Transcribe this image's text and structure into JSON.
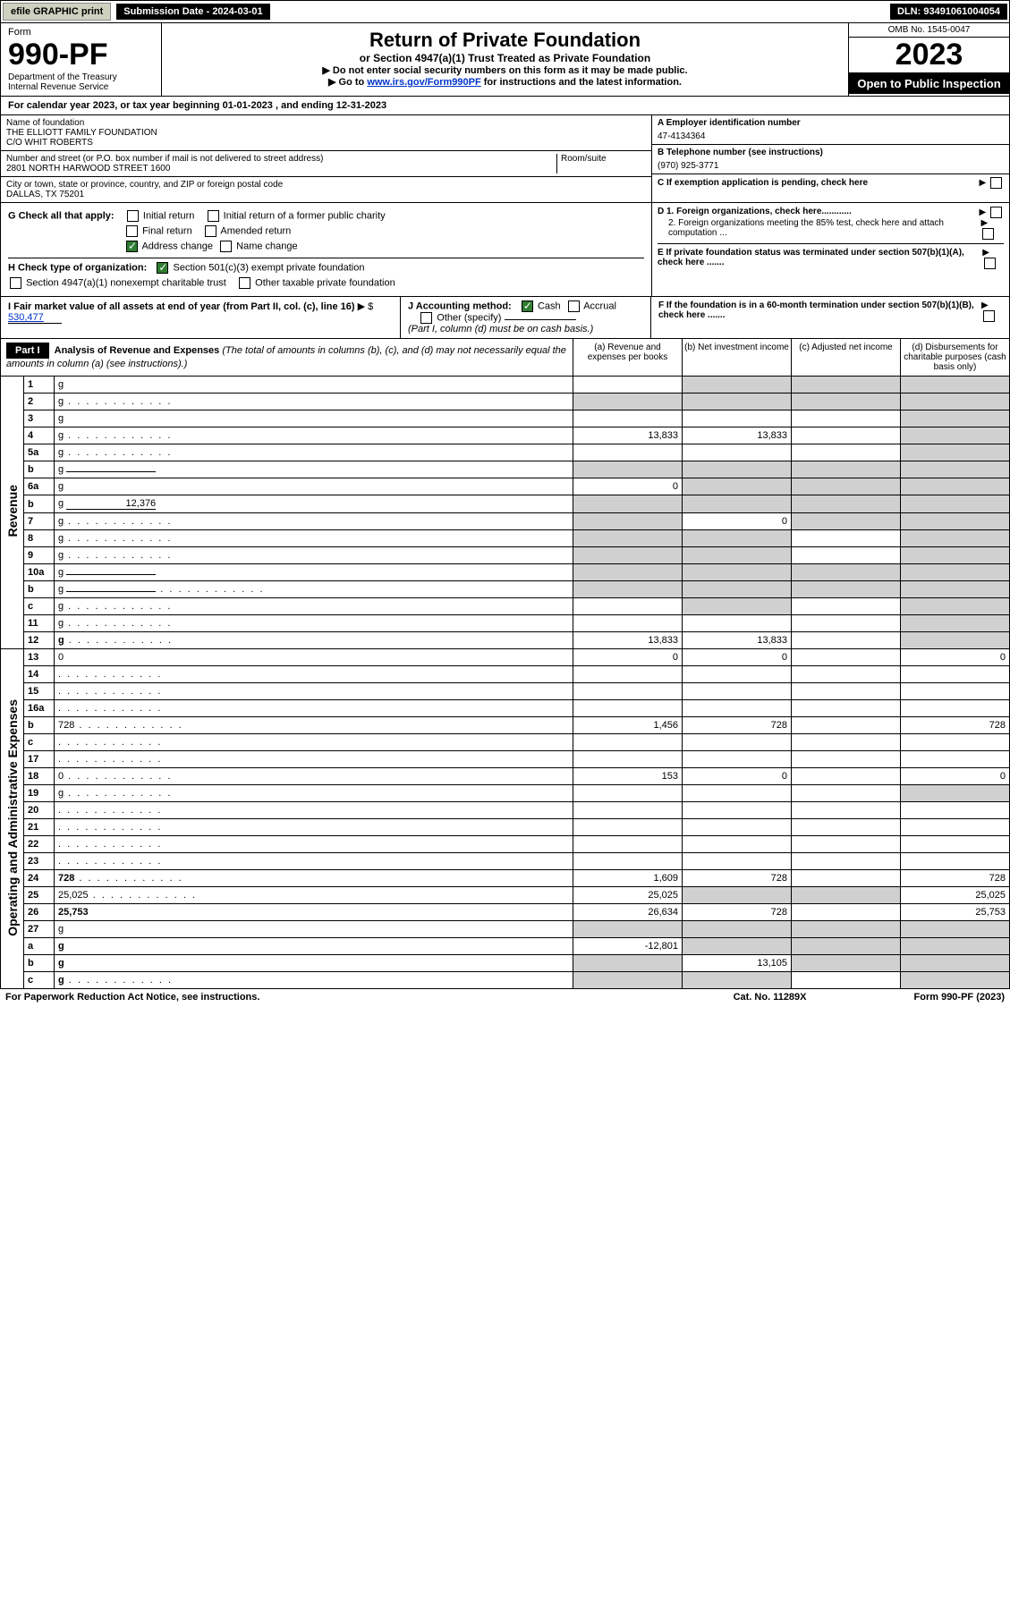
{
  "top": {
    "efile": "efile GRAPHIC print",
    "submission": "Submission Date - 2024-03-01",
    "dln": "DLN: 93491061004054"
  },
  "header": {
    "form_label": "Form",
    "form_num": "990-PF",
    "dept": "Department of the Treasury\nInternal Revenue Service",
    "title": "Return of Private Foundation",
    "subtitle": "or Section 4947(a)(1) Trust Treated as Private Foundation",
    "instr1": "▶ Do not enter social security numbers on this form as it may be made public.",
    "instr2_prefix": "▶ Go to ",
    "instr2_link": "www.irs.gov/Form990PF",
    "instr2_suffix": " for instructions and the latest information.",
    "omb": "OMB No. 1545-0047",
    "year": "2023",
    "open": "Open to Public Inspection"
  },
  "cal": "For calendar year 2023, or tax year beginning 01-01-2023           , and ending 12-31-2023",
  "org": {
    "name_label": "Name of foundation",
    "name": "THE ELLIOTT FAMILY FOUNDATION\nC/O WHIT ROBERTS",
    "addr_label": "Number and street (or P.O. box number if mail is not delivered to street address)",
    "addr": "2801 NORTH HARWOOD STREET 1600",
    "room_label": "Room/suite",
    "city_label": "City or town, state or province, country, and ZIP or foreign postal code",
    "city": "DALLAS, TX  75201",
    "ein_label": "A Employer identification number",
    "ein": "47-4134364",
    "phone_label": "B Telephone number (see instructions)",
    "phone": "(970) 925-3771",
    "c_label": "C If exemption application is pending, check here"
  },
  "checks": {
    "g_label": "G Check all that apply:",
    "initial": "Initial return",
    "initial_former": "Initial return of a former public charity",
    "final": "Final return",
    "amended": "Amended return",
    "addr_change": "Address change",
    "name_change": "Name change",
    "h_label": "H Check type of organization:",
    "h_501c3": "Section 501(c)(3) exempt private foundation",
    "h_4947": "Section 4947(a)(1) nonexempt charitable trust",
    "h_other": "Other taxable private foundation",
    "d1": "D 1. Foreign organizations, check here............",
    "d2": "2. Foreign organizations meeting the 85% test, check here and attach computation ...",
    "e": "E  If private foundation status was terminated under section 507(b)(1)(A), check here .......",
    "i_label": "I Fair market value of all assets at end of year (from Part II, col. (c), line 16)",
    "i_val": "530,477",
    "j_label": "J Accounting method:",
    "j_cash": "Cash",
    "j_accrual": "Accrual",
    "j_other": "Other (specify)",
    "j_note": "(Part I, column (d) must be on cash basis.)",
    "f": "F  If the foundation is in a 60-month termination under section 507(b)(1)(B), check here ......."
  },
  "part1": {
    "label": "Part I",
    "title": "Analysis of Revenue and Expenses",
    "note": "(The total of amounts in columns (b), (c), and (d) may not necessarily equal the amounts in column (a) (see instructions).)",
    "col_a": "(a)   Revenue and expenses per books",
    "col_b": "(b)   Net investment income",
    "col_c": "(c)   Adjusted net income",
    "col_d": "(d)  Disbursements for charitable purposes (cash basis only)"
  },
  "sideLabels": {
    "revenue": "Revenue",
    "expenses": "Operating and Administrative Expenses"
  },
  "rows": [
    {
      "n": "1",
      "d": "g",
      "a": "",
      "b": "g",
      "c": "g"
    },
    {
      "n": "2",
      "d": "g",
      "dots": true,
      "a": "g",
      "b": "g",
      "c": "g",
      "allgrey": true
    },
    {
      "n": "3",
      "d": "g",
      "a": "",
      "b": "",
      "c": ""
    },
    {
      "n": "4",
      "d": "g",
      "dots": true,
      "a": "13,833",
      "b": "13,833",
      "c": ""
    },
    {
      "n": "5a",
      "d": "g",
      "dots": true,
      "a": "",
      "b": "",
      "c": ""
    },
    {
      "n": "b",
      "d": "g",
      "inline": true,
      "a": "g",
      "b": "g",
      "c": "g",
      "allgrey": true
    },
    {
      "n": "6a",
      "d": "g",
      "a": "0",
      "b": "g",
      "c": "g"
    },
    {
      "n": "b",
      "d": "g",
      "inline": true,
      "inlineVal": "12,376",
      "a": "g",
      "b": "g",
      "c": "g",
      "allgrey": true
    },
    {
      "n": "7",
      "d": "g",
      "dots": true,
      "a": "g",
      "b": "0",
      "c": "g"
    },
    {
      "n": "8",
      "d": "g",
      "dots": true,
      "a": "g",
      "b": "g",
      "c": ""
    },
    {
      "n": "9",
      "d": "g",
      "dots": true,
      "a": "g",
      "b": "g",
      "c": ""
    },
    {
      "n": "10a",
      "d": "g",
      "inline": true,
      "a": "g",
      "b": "g",
      "c": "g",
      "allgrey": true
    },
    {
      "n": "b",
      "d": "g",
      "dots": true,
      "inline": true,
      "a": "g",
      "b": "g",
      "c": "g",
      "allgrey": true
    },
    {
      "n": "c",
      "d": "g",
      "dots": true,
      "a": "",
      "b": "g",
      "c": ""
    },
    {
      "n": "11",
      "d": "g",
      "dots": true,
      "a": "",
      "b": "",
      "c": ""
    },
    {
      "n": "12",
      "d": "g",
      "dots": true,
      "bold": true,
      "a": "13,833",
      "b": "13,833",
      "c": ""
    },
    {
      "n": "13",
      "d": "0",
      "a": "0",
      "b": "0",
      "c": ""
    },
    {
      "n": "14",
      "d": "",
      "dots": true,
      "a": "",
      "b": "",
      "c": ""
    },
    {
      "n": "15",
      "d": "",
      "dots": true,
      "a": "",
      "b": "",
      "c": ""
    },
    {
      "n": "16a",
      "d": "",
      "dots": true,
      "a": "",
      "b": "",
      "c": ""
    },
    {
      "n": "b",
      "d": "728",
      "dots": true,
      "a": "1,456",
      "b": "728",
      "c": ""
    },
    {
      "n": "c",
      "d": "",
      "dots": true,
      "a": "",
      "b": "",
      "c": ""
    },
    {
      "n": "17",
      "d": "",
      "dots": true,
      "a": "",
      "b": "",
      "c": ""
    },
    {
      "n": "18",
      "d": "0",
      "dots": true,
      "a": "153",
      "b": "0",
      "c": ""
    },
    {
      "n": "19",
      "d": "g",
      "dots": true,
      "a": "",
      "b": "",
      "c": ""
    },
    {
      "n": "20",
      "d": "",
      "dots": true,
      "a": "",
      "b": "",
      "c": ""
    },
    {
      "n": "21",
      "d": "",
      "dots": true,
      "a": "",
      "b": "",
      "c": ""
    },
    {
      "n": "22",
      "d": "",
      "dots": true,
      "a": "",
      "b": "",
      "c": ""
    },
    {
      "n": "23",
      "d": "",
      "dots": true,
      "a": "",
      "b": "",
      "c": ""
    },
    {
      "n": "24",
      "d": "728",
      "dots": true,
      "bold": true,
      "a": "1,609",
      "b": "728",
      "c": ""
    },
    {
      "n": "25",
      "d": "25,025",
      "dots": true,
      "a": "25,025",
      "b": "g",
      "c": "g"
    },
    {
      "n": "26",
      "d": "25,753",
      "bold": true,
      "a": "26,634",
      "b": "728",
      "c": ""
    },
    {
      "n": "27",
      "d": "g",
      "a": "g",
      "b": "g",
      "c": "g",
      "allgrey": true
    },
    {
      "n": "a",
      "d": "g",
      "bold": true,
      "a": "-12,801",
      "b": "g",
      "c": "g"
    },
    {
      "n": "b",
      "d": "g",
      "bold": true,
      "a": "g",
      "b": "13,105",
      "c": "g"
    },
    {
      "n": "c",
      "d": "g",
      "dots": true,
      "bold": true,
      "a": "g",
      "b": "g",
      "c": ""
    }
  ],
  "footer": {
    "left": "For Paperwork Reduction Act Notice, see instructions.",
    "mid": "Cat. No. 11289X",
    "right": "Form 990-PF (2023)"
  }
}
